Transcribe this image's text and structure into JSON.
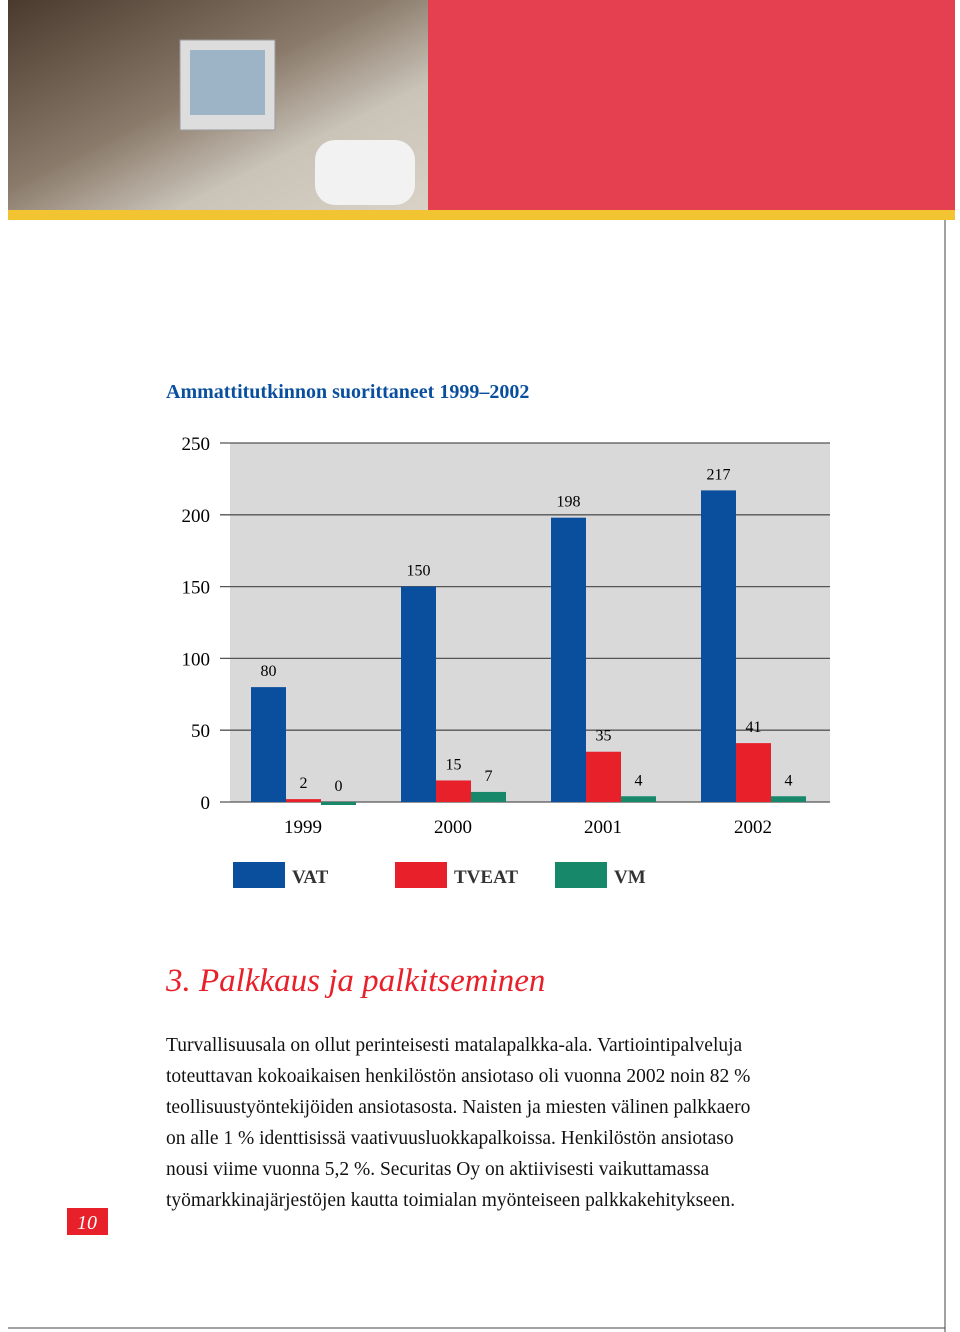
{
  "chart_data": {
    "type": "bar",
    "title": "Ammattitutkinnon suorittaneet 1999–2002",
    "categories": [
      "1999",
      "2000",
      "2001",
      "2002"
    ],
    "series": [
      {
        "name": "VAT",
        "color": "#0a4f9e",
        "values": [
          80,
          150,
          198,
          217
        ]
      },
      {
        "name": "TVEAT",
        "color": "#e8202a",
        "values": [
          2,
          15,
          35,
          41
        ]
      },
      {
        "name": "VM",
        "color": "#17896a",
        "values": [
          0,
          7,
          4,
          4
        ]
      }
    ],
    "ylim": [
      0,
      250
    ],
    "yticks": [
      0,
      50,
      100,
      150,
      200,
      250
    ],
    "grid": true,
    "legend": "bottom"
  },
  "section": {
    "heading": "3. Palkkaus ja palkitseminen",
    "lines": [
      "Turvallisuusala on ollut perinteisesti matalapalkka-ala. Vartiointipalveluja",
      "toteuttavan kokoaikaisen henkilöstön ansiotaso oli vuonna 2002 noin 82 %",
      "teollisuustyöntekijöiden ansiotasosta. Naisten ja miesten välinen palkkaero",
      "on alle 1 % identtisissä vaativuusluokkapalkoissa. Henkilöstön ansiotaso",
      "nousi viime vuonna 5,2 %. Securitas Oy on aktiivisesti vaikuttamassa",
      "työmarkkinajärjestöjen kautta toimialan myönteiseen palkkakehitykseen."
    ]
  },
  "page_number": "10"
}
